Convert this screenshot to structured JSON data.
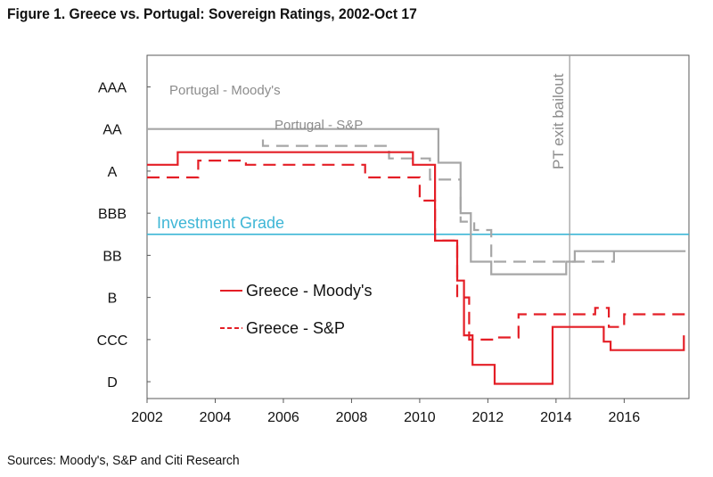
{
  "title": "Figure 1. Greece vs. Portugal: Sovereign Ratings, 2002-Oct 17",
  "source": "Sources: Moody's, S&P and Citi Research",
  "colors": {
    "greece": "#e41e26",
    "portugal": "#a6a6a6",
    "investment_grade": "#3eb6d6",
    "event_line": "#9a9a9a"
  },
  "chart_data": {
    "type": "line",
    "xlim": [
      2002,
      2017.9
    ],
    "x_ticks": [
      "2002",
      "2004",
      "2006",
      "2008",
      "2010",
      "2012",
      "2014",
      "2016"
    ],
    "x_tick_values": [
      2002,
      2004,
      2006,
      2008,
      2010,
      2012,
      2014,
      2016
    ],
    "y_levels": [
      {
        "label": "AAA",
        "level": 8
      },
      {
        "label": "AA",
        "level": 7
      },
      {
        "label": "A",
        "level": 6
      },
      {
        "label": "BBB",
        "level": 5
      },
      {
        "label": "BB",
        "level": 4
      },
      {
        "label": "B",
        "level": 3
      },
      {
        "label": "CCC",
        "level": 2
      },
      {
        "label": "D",
        "level": 1
      }
    ],
    "ylim": [
      0.6,
      8.75
    ],
    "investment_grade": {
      "label": "Investment Grade",
      "level": 4.5
    },
    "event": {
      "label": "PT exit bailout",
      "x": 2014.4
    },
    "series": [
      {
        "name": "Portugal - Moody's",
        "color": "#a6a6a6",
        "dash": "solid",
        "width": 2.2,
        "points": [
          [
            2002,
            7.0
          ],
          [
            2010.55,
            7.0
          ],
          [
            2010.55,
            6.2
          ],
          [
            2011.2,
            6.2
          ],
          [
            2011.2,
            5.0
          ],
          [
            2011.5,
            5.0
          ],
          [
            2011.5,
            3.85
          ],
          [
            2012.1,
            3.85
          ],
          [
            2012.1,
            3.55
          ],
          [
            2014.3,
            3.55
          ],
          [
            2014.3,
            3.85
          ],
          [
            2014.55,
            3.85
          ],
          [
            2014.55,
            4.1
          ],
          [
            2017.8,
            4.1
          ]
        ]
      },
      {
        "name": "Portugal - S&P",
        "color": "#a6a6a6",
        "dash": "dashed",
        "width": 2.2,
        "points": [
          [
            2005.4,
            6.75
          ],
          [
            2005.4,
            6.6
          ],
          [
            2009.1,
            6.6
          ],
          [
            2009.1,
            6.3
          ],
          [
            2010.3,
            6.3
          ],
          [
            2010.3,
            5.8
          ],
          [
            2011.2,
            5.8
          ],
          [
            2011.2,
            4.8
          ],
          [
            2011.6,
            4.8
          ],
          [
            2011.6,
            4.6
          ],
          [
            2012.1,
            4.6
          ],
          [
            2012.1,
            3.85
          ],
          [
            2015.7,
            3.85
          ],
          [
            2015.7,
            4.2
          ]
        ]
      },
      {
        "name": "Greece - Moody's",
        "color": "#e41e26",
        "dash": "solid",
        "width": 2.2,
        "points": [
          [
            2002,
            6.15
          ],
          [
            2002.9,
            6.15
          ],
          [
            2002.9,
            6.45
          ],
          [
            2009.8,
            6.45
          ],
          [
            2009.8,
            6.15
          ],
          [
            2010.45,
            6.15
          ],
          [
            2010.45,
            4.35
          ],
          [
            2011.1,
            4.35
          ],
          [
            2011.1,
            3.4
          ],
          [
            2011.3,
            3.4
          ],
          [
            2011.3,
            2.1
          ],
          [
            2011.55,
            2.1
          ],
          [
            2011.55,
            1.4
          ],
          [
            2012.2,
            1.4
          ],
          [
            2012.2,
            0.95
          ],
          [
            2013.9,
            0.95
          ],
          [
            2013.9,
            2.3
          ],
          [
            2015.4,
            2.3
          ],
          [
            2015.4,
            1.95
          ],
          [
            2015.6,
            1.95
          ],
          [
            2015.6,
            1.75
          ],
          [
            2017.75,
            1.75
          ],
          [
            2017.75,
            2.1
          ]
        ]
      },
      {
        "name": "Greece - S&P",
        "color": "#e41e26",
        "dash": "dashed",
        "width": 2.2,
        "points": [
          [
            2002,
            5.85
          ],
          [
            2003.5,
            5.85
          ],
          [
            2003.5,
            6.25
          ],
          [
            2004.9,
            6.25
          ],
          [
            2004.9,
            6.15
          ],
          [
            2008.4,
            6.15
          ],
          [
            2008.4,
            5.85
          ],
          [
            2010.0,
            5.85
          ],
          [
            2010.0,
            5.3
          ],
          [
            2010.45,
            5.3
          ],
          [
            2010.45,
            4.35
          ],
          [
            2011.1,
            4.35
          ],
          [
            2011.1,
            3.0
          ],
          [
            2011.45,
            3.0
          ],
          [
            2011.45,
            2.0
          ],
          [
            2012.3,
            2.0
          ],
          [
            2012.3,
            2.05
          ],
          [
            2012.9,
            2.05
          ],
          [
            2012.9,
            2.6
          ],
          [
            2015.15,
            2.6
          ],
          [
            2015.15,
            2.75
          ],
          [
            2015.55,
            2.75
          ],
          [
            2015.55,
            2.3
          ],
          [
            2016.0,
            2.3
          ],
          [
            2016.0,
            2.6
          ],
          [
            2017.8,
            2.6
          ]
        ]
      }
    ],
    "labels": [
      {
        "text": "Portugal - Moody's",
        "series": "Portugal - Moody's"
      },
      {
        "text": "Portugal - S&P",
        "series": "Portugal - S&P"
      }
    ],
    "legend": {
      "placement": "center-left",
      "entries": [
        {
          "name": "Greece - Moody's",
          "dash": "solid"
        },
        {
          "name": "Greece - S&P",
          "dash": "dashed"
        }
      ]
    },
    "grid": false
  }
}
